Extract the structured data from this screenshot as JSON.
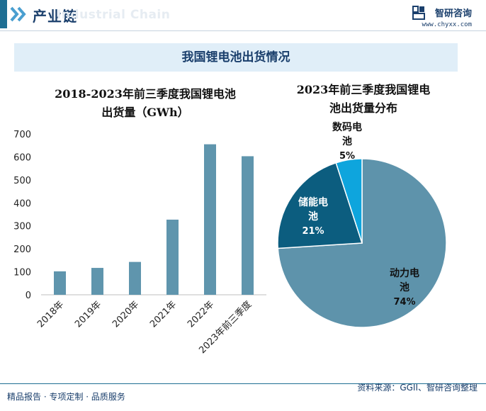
{
  "header": {
    "title": "产业链",
    "ghost_text": "Industrial Chain"
  },
  "brand": {
    "name": "智研咨询",
    "url": "www.chyxx.com"
  },
  "banner": {
    "title": "我国锂电池出货情况"
  },
  "footer": {
    "left": "精品报告 · 专项定制 · 品质服务",
    "source": "资料来源：GGII、智研咨询整理"
  },
  "watermark": {
    "text": "智研咨询"
  },
  "colors": {
    "bar": "#5f95ad",
    "pie_main": "#5e93ab",
    "pie_storage": "#0c5d7f",
    "pie_digital": "#0ea5dd",
    "accent": "#1a3f6c"
  },
  "chart_data": [
    {
      "type": "bar",
      "title_line1": "2018-2023年前三季度我国锂电池",
      "title_line2": "出货量（GWh）",
      "categories": [
        "2018年",
        "2019年",
        "2020年",
        "2021年",
        "2022年",
        "2023年前三季度"
      ],
      "values": [
        102,
        117,
        143,
        327,
        655,
        603
      ],
      "ylim": [
        0,
        700
      ],
      "yticks": [
        "0",
        "100",
        "200",
        "300",
        "400",
        "500",
        "600",
        "700"
      ],
      "grid": false
    },
    {
      "type": "pie",
      "title_line1": "2023年前三季度我国锂电",
      "title_line2": "池出货量分布",
      "slices": [
        {
          "label_line1": "动力电",
          "label_line2": "池",
          "percent_label": "74%",
          "value": 74
        },
        {
          "label_line1": "储能电",
          "label_line2": "池",
          "percent_label": "21%",
          "value": 21
        },
        {
          "label_line1": "数码电",
          "label_line2": "池",
          "percent_label": "5%",
          "value": 5
        }
      ]
    }
  ]
}
